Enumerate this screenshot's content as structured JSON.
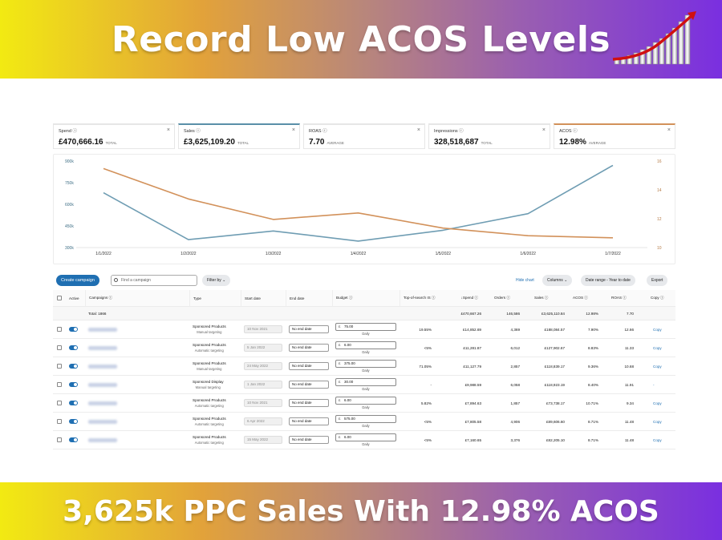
{
  "banner": {
    "title": "Record Low ACOS Levels",
    "subtitle": "3,625k PPC Sales With 12.98% ACOS",
    "icon": "growth-chart-icon"
  },
  "metrics": [
    {
      "name": "Spend ⓘ",
      "value": "£470,666.16",
      "unit": "TOTAL",
      "close": "×"
    },
    {
      "name": "Sales ⓘ",
      "value": "£3,625,109.20",
      "unit": "TOTAL",
      "close": "×"
    },
    {
      "name": "ROAS ⓘ",
      "value": "7.70",
      "unit": "AVERAGE",
      "close": "×"
    },
    {
      "name": "Impressions ⓘ",
      "value": "328,518,687",
      "unit": "TOTAL",
      "close": "×"
    },
    {
      "name": "ACOS ⓘ",
      "value": "12.98%",
      "unit": "AVERAGE",
      "close": "×"
    }
  ],
  "chart_data": {
    "type": "line",
    "x": [
      "1/1/2022",
      "1/2/2022",
      "1/3/2022",
      "1/4/2022",
      "1/5/2022",
      "1/6/2022",
      "1/7/2022"
    ],
    "left_ticks": [
      "900k",
      "750k",
      "600k",
      "450k",
      "300k"
    ],
    "right_ticks": [
      "16",
      "14",
      "12",
      "10"
    ],
    "ylim_left": [
      300000,
      900000
    ],
    "ylim_right": [
      10,
      18
    ],
    "series": [
      {
        "axis": "left",
        "color": "#6f9db3",
        "values": [
          680000,
          355000,
          415000,
          345000,
          420000,
          535000,
          870000
        ]
      },
      {
        "axis": "right",
        "color": "#d2915a",
        "values": [
          17.3,
          14.5,
          12.6,
          13.2,
          11.8,
          11.1,
          10.9
        ]
      }
    ],
    "grid": false
  },
  "toolbar": {
    "create": "Create campaign",
    "search_placeholder": "Find a campaign",
    "filter": "Filter by ⌄",
    "hide_chart": "Hide chart",
    "columns": "Columns ⌄",
    "date_range": "Date range - Year to date",
    "export": "Export"
  },
  "table": {
    "headers": {
      "active": "Active",
      "campaigns": "Campaigns ⓘ",
      "type": "Type",
      "start": "Start date",
      "end": "End date",
      "budget": "Budget ⓘ",
      "tos": "Top-of-search IS ⓘ",
      "spend": "↓Spend ⓘ",
      "orders": "Orders ⓘ",
      "sales": "Sales ⓘ",
      "acos": "ACOS ⓘ",
      "roas": "ROAS ⓘ",
      "copy": "Copy ⓘ"
    },
    "total": {
      "label": "Total: 1866",
      "spend": "£470,667.26",
      "orders": "146,586",
      "sales": "£3,625,110.84",
      "acos": "12.98%",
      "roas": "7.70"
    },
    "rows": [
      {
        "type": "Sponsored Products",
        "targeting": "Manual targeting",
        "start": "10 Nov 2021",
        "end": "No end date",
        "currency": "£",
        "budget": "75.00",
        "period": "Daily",
        "tos": "19.55%",
        "spend": "£14,852.69",
        "orders": "4,369",
        "sales": "£188,084.57",
        "acos": "7.90%",
        "roas": "12.66",
        "copy": "Copy"
      },
      {
        "type": "Sponsored Products",
        "targeting": "Automatic targeting",
        "start": "5 Jan 2022",
        "end": "No end date",
        "currency": "£",
        "budget": "6.00",
        "period": "Daily",
        "tos": "<5%",
        "spend": "£11,281.87",
        "orders": "6,012",
        "sales": "£127,902.67",
        "acos": "8.83%",
        "roas": "11.33",
        "copy": "Copy"
      },
      {
        "type": "Sponsored Products",
        "targeting": "Manual targeting",
        "start": "24 May 2022",
        "end": "No end date",
        "currency": "£",
        "budget": "375.00",
        "period": "Daily",
        "tos": "71.05%",
        "spend": "£11,127.79",
        "orders": "2,857",
        "sales": "£118,839.17",
        "acos": "9.36%",
        "roas": "10.68",
        "copy": "Copy"
      },
      {
        "type": "Sponsored Display",
        "targeting": "Manual targeting",
        "start": "1 Jan 2022",
        "end": "No end date",
        "currency": "£",
        "budget": "30.00",
        "period": "Daily",
        "tos": "-",
        "spend": "£9,988.59",
        "orders": "6,058",
        "sales": "£118,923.19",
        "acos": "8.40%",
        "roas": "11.91",
        "copy": "-"
      },
      {
        "type": "Sponsored Products",
        "targeting": "Automatic targeting",
        "start": "10 Nov 2021",
        "end": "No end date",
        "currency": "£",
        "budget": "6.00",
        "period": "Daily",
        "tos": "5.82%",
        "spend": "£7,894.63",
        "orders": "1,857",
        "sales": "£73,738.17",
        "acos": "10.71%",
        "roas": "9.34",
        "copy": "Copy"
      },
      {
        "type": "Sponsored Products",
        "targeting": "Automatic targeting",
        "start": "6 Apr 2022",
        "end": "No end date",
        "currency": "£",
        "budget": "575.00",
        "period": "Daily",
        "tos": "<5%",
        "spend": "£7,805.58",
        "orders": "4,906",
        "sales": "£89,606.60",
        "acos": "8.71%",
        "roas": "11.48",
        "copy": "Copy"
      },
      {
        "type": "Sponsored Products",
        "targeting": "Automatic targeting",
        "start": "15 May 2022",
        "end": "No end date",
        "currency": "£",
        "budget": "6.00",
        "period": "Daily",
        "tos": "<5%",
        "spend": "£7,160.65",
        "orders": "3,376",
        "sales": "£82,205.10",
        "acos": "8.71%",
        "roas": "11.48",
        "copy": "Copy"
      }
    ]
  }
}
